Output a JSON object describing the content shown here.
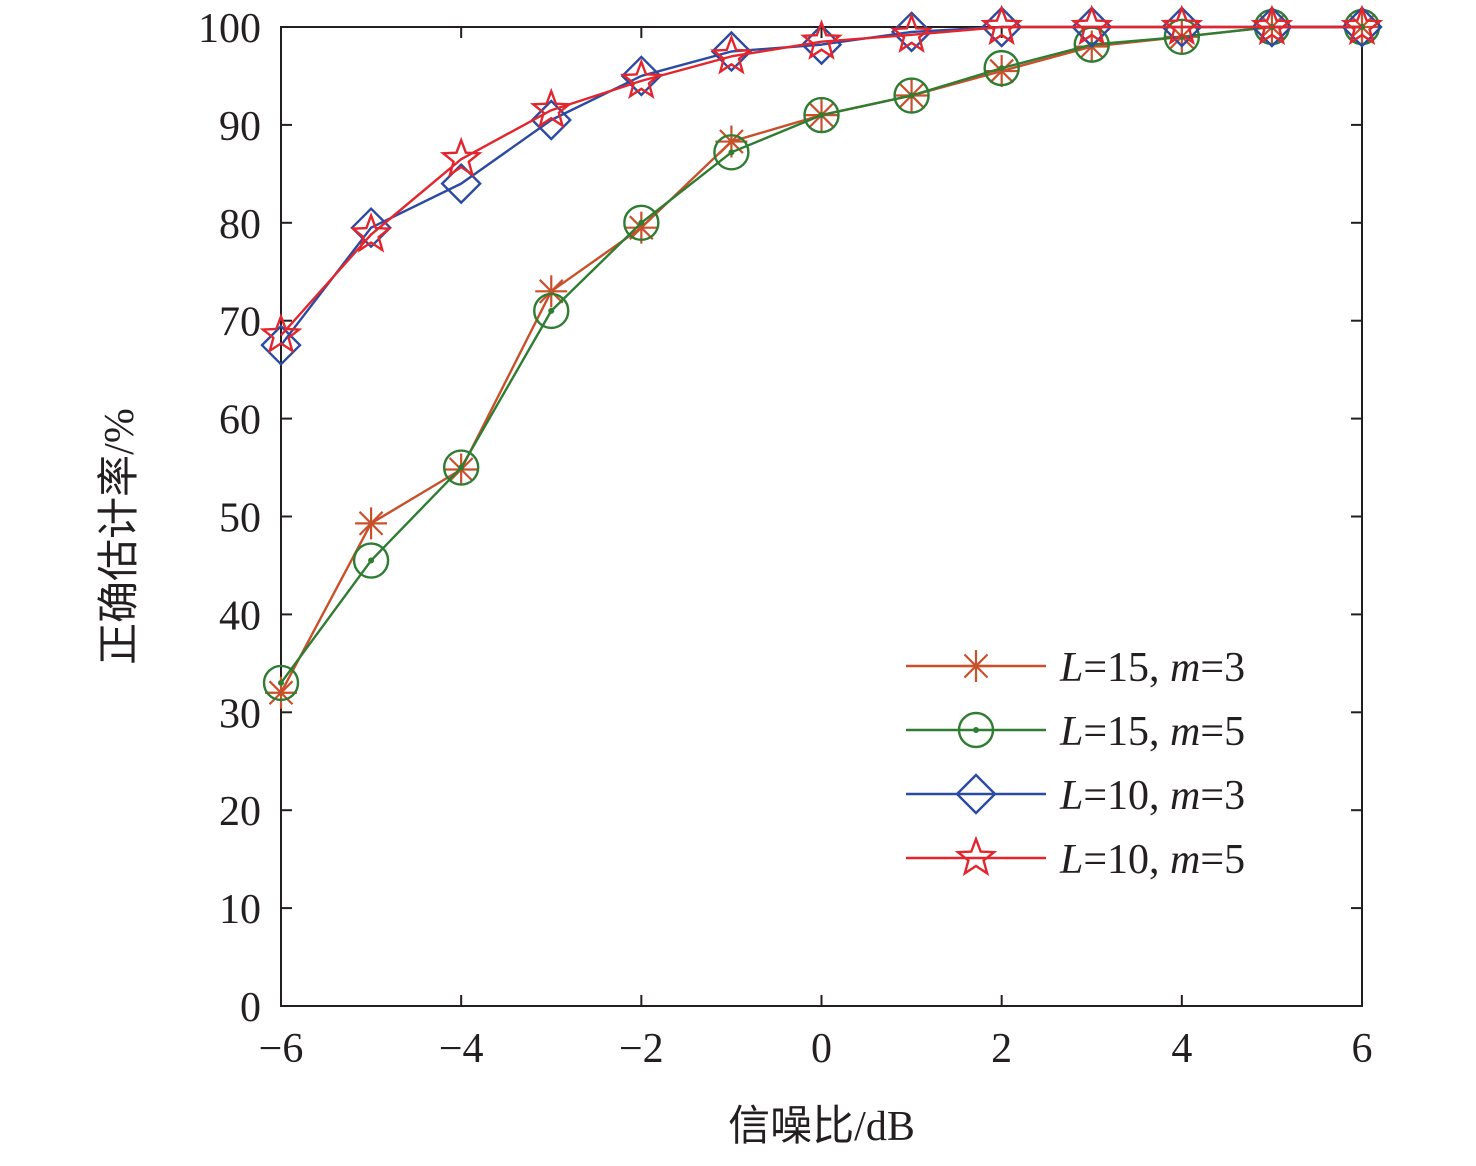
{
  "chart_data": {
    "type": "line",
    "title": "",
    "xlabel": "信噪比/dB",
    "ylabel": "正确估计率/%",
    "xlim": [
      -6,
      6
    ],
    "ylim": [
      0,
      100
    ],
    "grid": false,
    "legend_position": "bottom-right",
    "x_ticks": [
      -6,
      -4,
      -2,
      0,
      2,
      4,
      6
    ],
    "x_tick_labels": [
      "−6",
      "−4",
      "−2",
      "0",
      "2",
      "4",
      "6"
    ],
    "y_ticks": [
      0,
      10,
      20,
      30,
      40,
      50,
      60,
      70,
      80,
      90,
      100
    ],
    "y_tick_labels": [
      "0",
      "10",
      "20",
      "30",
      "40",
      "50",
      "60",
      "70",
      "80",
      "90",
      "100"
    ],
    "x": [
      -6,
      -5,
      -4,
      -3,
      -2,
      -1,
      0,
      1,
      2,
      3,
      4,
      5,
      6
    ],
    "series": [
      {
        "name": "L=15, m=3",
        "legend": {
          "L": "L",
          "L_value": "=15, ",
          "m": "m",
          "m_value": "=3"
        },
        "color": "#c8502a",
        "marker": "asterisk",
        "values": [
          32,
          49.3,
          54.8,
          73,
          79.5,
          88.3,
          91,
          93,
          95.5,
          98,
          99,
          100,
          100
        ]
      },
      {
        "name": "L=15, m=5",
        "legend": {
          "L": "L",
          "L_value": "=15, ",
          "m": "m",
          "m_value": "=5"
        },
        "color": "#2e7d32",
        "marker": "circle-dot",
        "values": [
          33,
          45.5,
          55,
          71,
          80,
          87.2,
          91,
          93,
          95.8,
          98.2,
          99,
          100,
          100
        ]
      },
      {
        "name": "L=10, m=3",
        "legend": {
          "L": "L",
          "L_value": "=10, ",
          "m": "m",
          "m_value": "=3"
        },
        "color": "#2b4ba3",
        "marker": "diamond",
        "values": [
          67.5,
          79.5,
          84,
          90.5,
          95,
          97.5,
          98.2,
          99.5,
          100,
          100,
          100,
          100,
          100
        ]
      },
      {
        "name": "L=10, m=5",
        "legend": {
          "L": "L",
          "L_value": "=10, ",
          "m": "m",
          "m_value": "=5"
        },
        "color": "#e3262e",
        "marker": "star",
        "values": [
          68.5,
          78.8,
          86.5,
          91.5,
          94.5,
          97,
          98.5,
          99.2,
          100,
          100,
          100,
          100,
          100
        ]
      }
    ]
  }
}
